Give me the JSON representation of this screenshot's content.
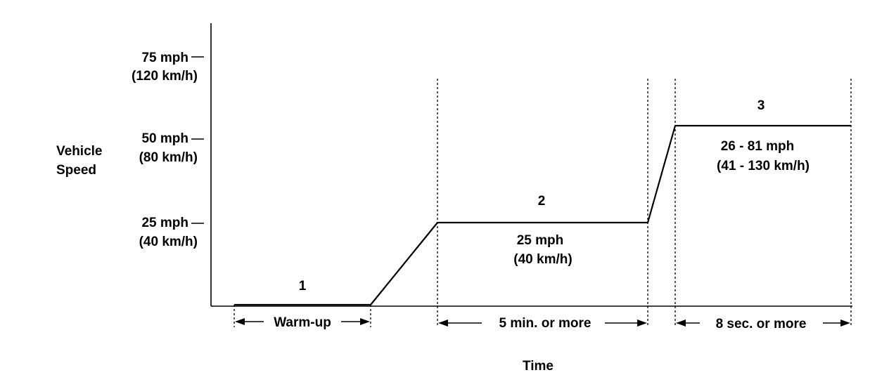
{
  "y_axis": {
    "title_line1": "Vehicle",
    "title_line2": "Speed",
    "ticks": [
      {
        "mph": "75 mph",
        "kmh": "(120 km/h)"
      },
      {
        "mph": "50 mph",
        "kmh": "(80 km/h)"
      },
      {
        "mph": "25 mph",
        "kmh": "(40 km/h)"
      }
    ]
  },
  "x_axis": {
    "title": "Time"
  },
  "phases": [
    {
      "number": "1",
      "duration_label": "Warm-up"
    },
    {
      "number": "2",
      "speed_line1": "25 mph",
      "speed_line2": "(40 km/h)",
      "duration_label": "5 min. or more"
    },
    {
      "number": "3",
      "speed_line1": "26 - 81 mph",
      "speed_line2": "(41 - 130 km/h)",
      "duration_label": "8 sec. or more"
    }
  ]
}
